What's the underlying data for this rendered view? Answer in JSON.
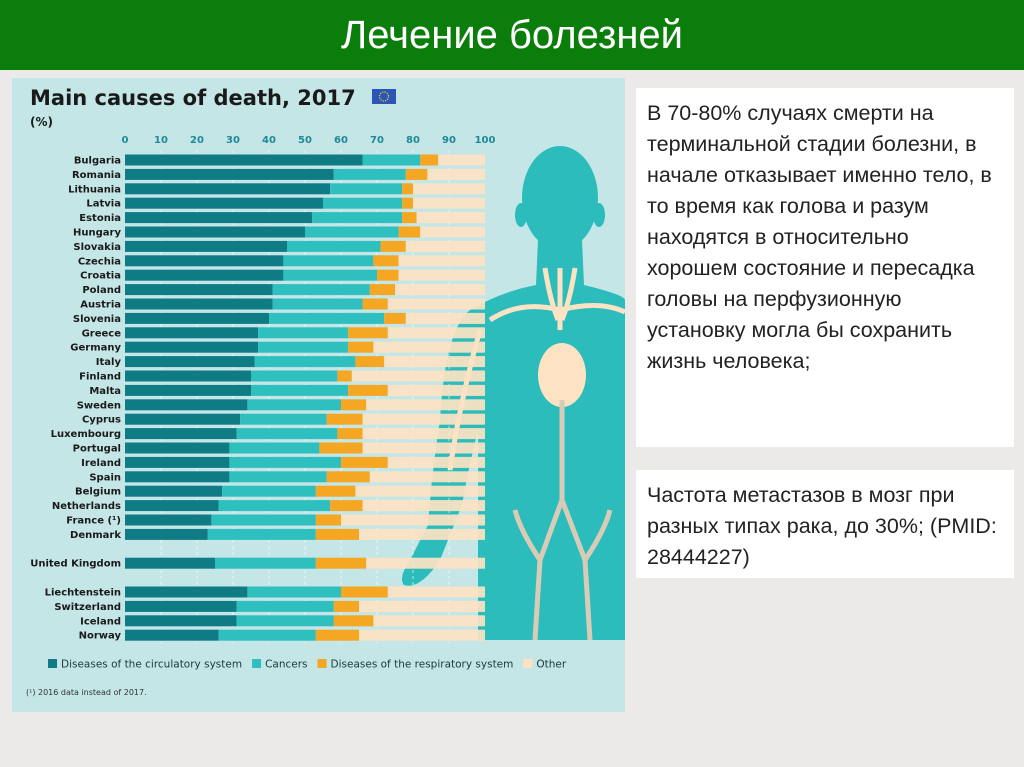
{
  "slide": {
    "title": "Лечение болезней",
    "text_box_1": "В 70-80% случаях смерти на терминальной стадии болезни, в начале отказывает именно тело, в то время как голова и разум находятся в относительно хорошем состояние и пересадка головы на перфузионную установку могла бы сохранить жизнь человека;",
    "text_box_2": "Частота метастазов в мозг при разных типах рака, до 30%; (PMID: 28444227)"
  },
  "chart_data": {
    "type": "bar",
    "orientation": "horizontal",
    "stacked": true,
    "title": "Main causes of death, 2017",
    "subtitle": "(%)",
    "footnote": "(¹) 2016 data instead of 2017.",
    "xlim": [
      0,
      100
    ],
    "xticks": [
      "0",
      "10",
      "20",
      "30",
      "40",
      "50",
      "60",
      "70",
      "80",
      "90",
      "100"
    ],
    "grid": true,
    "legend_position": "bottom",
    "icon": "eu-flag-icon",
    "colors": {
      "circulatory": "#0e7b85",
      "cancers": "#2fbfbf",
      "respiratory": "#f5a623",
      "other": "#fde3c3"
    },
    "categories": [
      "Bulgaria",
      "Romania",
      "Lithuania",
      "Latvia",
      "Estonia",
      "Hungary",
      "Slovakia",
      "Czechia",
      "Croatia",
      "Poland",
      "Austria",
      "Slovenia",
      "Greece",
      "Germany",
      "Italy",
      "Finland",
      "Malta",
      "Sweden",
      "Cyprus",
      "Luxembourg",
      "Portugal",
      "Ireland",
      "Spain",
      "Belgium",
      "Netherlands",
      "France (¹)",
      "Denmark",
      "United Kingdom",
      "Liechtenstein",
      "Switzerland",
      "Iceland",
      "Norway"
    ],
    "groups": [
      0,
      0,
      0,
      0,
      0,
      0,
      0,
      0,
      0,
      0,
      0,
      0,
      0,
      0,
      0,
      0,
      0,
      0,
      0,
      0,
      0,
      0,
      0,
      0,
      0,
      0,
      0,
      1,
      2,
      2,
      2,
      2
    ],
    "series": [
      {
        "name": "Diseases of the circulatory system",
        "key": "circulatory",
        "values": [
          66,
          58,
          57,
          55,
          52,
          50,
          45,
          44,
          44,
          41,
          41,
          40,
          37,
          37,
          36,
          35,
          35,
          34,
          32,
          31,
          29,
          29,
          29,
          27,
          26,
          24,
          23,
          25,
          34,
          31,
          31,
          26
        ]
      },
      {
        "name": "Cancers",
        "key": "cancers",
        "values": [
          16,
          20,
          20,
          22,
          25,
          26,
          26,
          25,
          26,
          27,
          25,
          32,
          25,
          25,
          28,
          24,
          27,
          26,
          24,
          28,
          25,
          31,
          27,
          26,
          31,
          29,
          30,
          28,
          26,
          27,
          27,
          27
        ]
      },
      {
        "name": "Diseases of the respiratory system",
        "key": "respiratory",
        "values": [
          5,
          6,
          3,
          3,
          4,
          6,
          7,
          7,
          6,
          7,
          7,
          6,
          11,
          7,
          8,
          4,
          11,
          7,
          10,
          7,
          12,
          13,
          12,
          11,
          9,
          7,
          12,
          14,
          13,
          7,
          11,
          12
        ]
      },
      {
        "name": "Other",
        "key": "other",
        "values": [
          13,
          16,
          20,
          20,
          19,
          18,
          22,
          24,
          24,
          25,
          27,
          22,
          27,
          31,
          28,
          37,
          27,
          33,
          34,
          34,
          34,
          27,
          32,
          36,
          34,
          40,
          35,
          33,
          27,
          35,
          31,
          35
        ]
      }
    ]
  }
}
